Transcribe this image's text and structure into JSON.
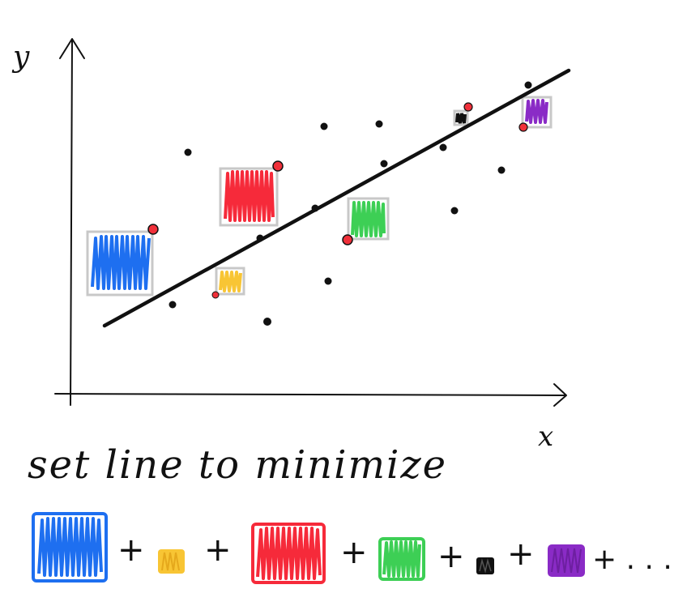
{
  "axes": {
    "y_label": "y",
    "x_label": "x"
  },
  "caption": {
    "text": "set line to minimize"
  },
  "equation": {
    "plus": "+",
    "ellipsis": "+ . . ."
  },
  "colors": {
    "ink": "#111111",
    "point": "#111111",
    "endpoint": "#f0303a",
    "box_outline": "#c8c8c8",
    "blue": "#1e6ff0",
    "yellow": "#f8c534",
    "red": "#f62a3a",
    "green": "#3dcf55",
    "black": "#111111",
    "purple": "#8a2bc6"
  }
}
